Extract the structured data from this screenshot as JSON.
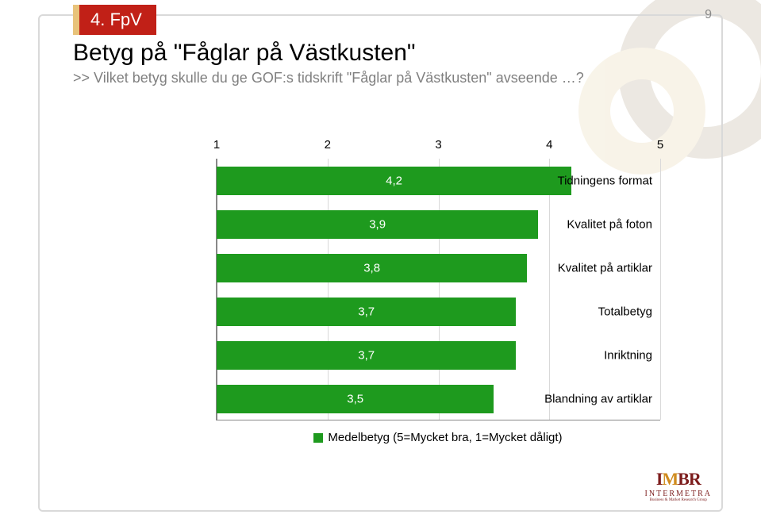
{
  "page_number": "9",
  "section_tab": "4. FpV",
  "title": "Betyg på \"Fåglar på Västkusten\"",
  "subtitle": ">> Vilket betyg skulle du ge GOF:s tidskrift \"Fåglar på Västkusten\" avseende …?",
  "chart": {
    "type": "bar-horizontal",
    "x_min": 1,
    "x_max": 5,
    "x_ticks": [
      1,
      2,
      3,
      4,
      5
    ],
    "bar_color": "#1e9a1e",
    "grid_color": "#d9d9d9",
    "axis_color": "#888888",
    "value_text_color": "#ffffff",
    "background_color": "#ffffff",
    "label_fontsize": 15,
    "rows": [
      {
        "label": "Tidningens format",
        "value": 4.2,
        "value_label": "4,2"
      },
      {
        "label": "Kvalitet på foton",
        "value": 3.9,
        "value_label": "3,9"
      },
      {
        "label": "Kvalitet på artiklar",
        "value": 3.8,
        "value_label": "3,8"
      },
      {
        "label": "Totalbetyg",
        "value": 3.7,
        "value_label": "3,7"
      },
      {
        "label": "Inriktning",
        "value": 3.7,
        "value_label": "3,7"
      },
      {
        "label": "Blandning av artiklar",
        "value": 3.5,
        "value_label": "3,5"
      }
    ],
    "legend_label": "Medelbetyg (5=Mycket bra, 1=Mycket dåligt)"
  },
  "logo": {
    "mark": "IMBR",
    "brand": "INTERMETRA",
    "tagline": "Business & Market Research Group"
  }
}
